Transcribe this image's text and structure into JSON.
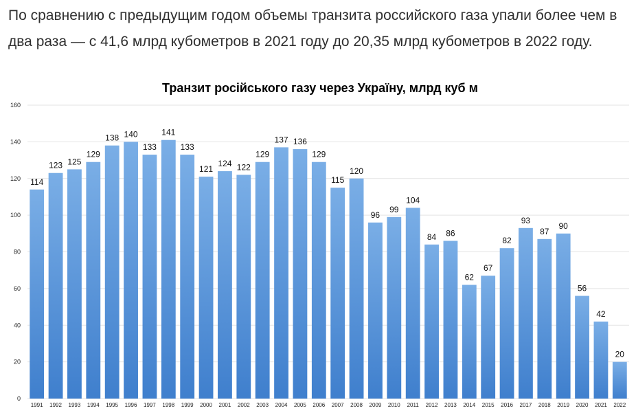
{
  "article": {
    "text": "По сравнению с предыдущим годом объемы транзита российского газа упали более чем в два раза — с 41,6 млрд кубометров в 2021 году до 20,35 млрд кубометров в 2022 году."
  },
  "colors": {
    "bar_top": "#7aaee6",
    "bar_bottom": "#3f7fcd",
    "grid": "#e3e3e3"
  },
  "chart_data": {
    "type": "bar",
    "title": "Транзит російського газу через Україну, млрд куб м",
    "xlabel": "",
    "ylabel": "",
    "categories": [
      "1991",
      "1992",
      "1993",
      "1994",
      "1995",
      "1996",
      "1997",
      "1998",
      "1999",
      "2000",
      "2001",
      "2002",
      "2003",
      "2004",
      "2005",
      "2006",
      "2007",
      "2008",
      "2009",
      "2010",
      "2011",
      "2012",
      "2013",
      "2014",
      "2015",
      "2016",
      "2017",
      "2018",
      "2019",
      "2020",
      "2021",
      "2022"
    ],
    "values": [
      114,
      123,
      125,
      129,
      138,
      140,
      133,
      141,
      133,
      121,
      124,
      122,
      129,
      137,
      136,
      129,
      115,
      120,
      96,
      99,
      104,
      84,
      86,
      62,
      67,
      82,
      93,
      87,
      90,
      56,
      42,
      20
    ],
    "ylim": [
      0,
      160
    ],
    "yticks": [
      0,
      20,
      40,
      60,
      80,
      100,
      120,
      140,
      160
    ],
    "grid": true,
    "legend": "none"
  }
}
